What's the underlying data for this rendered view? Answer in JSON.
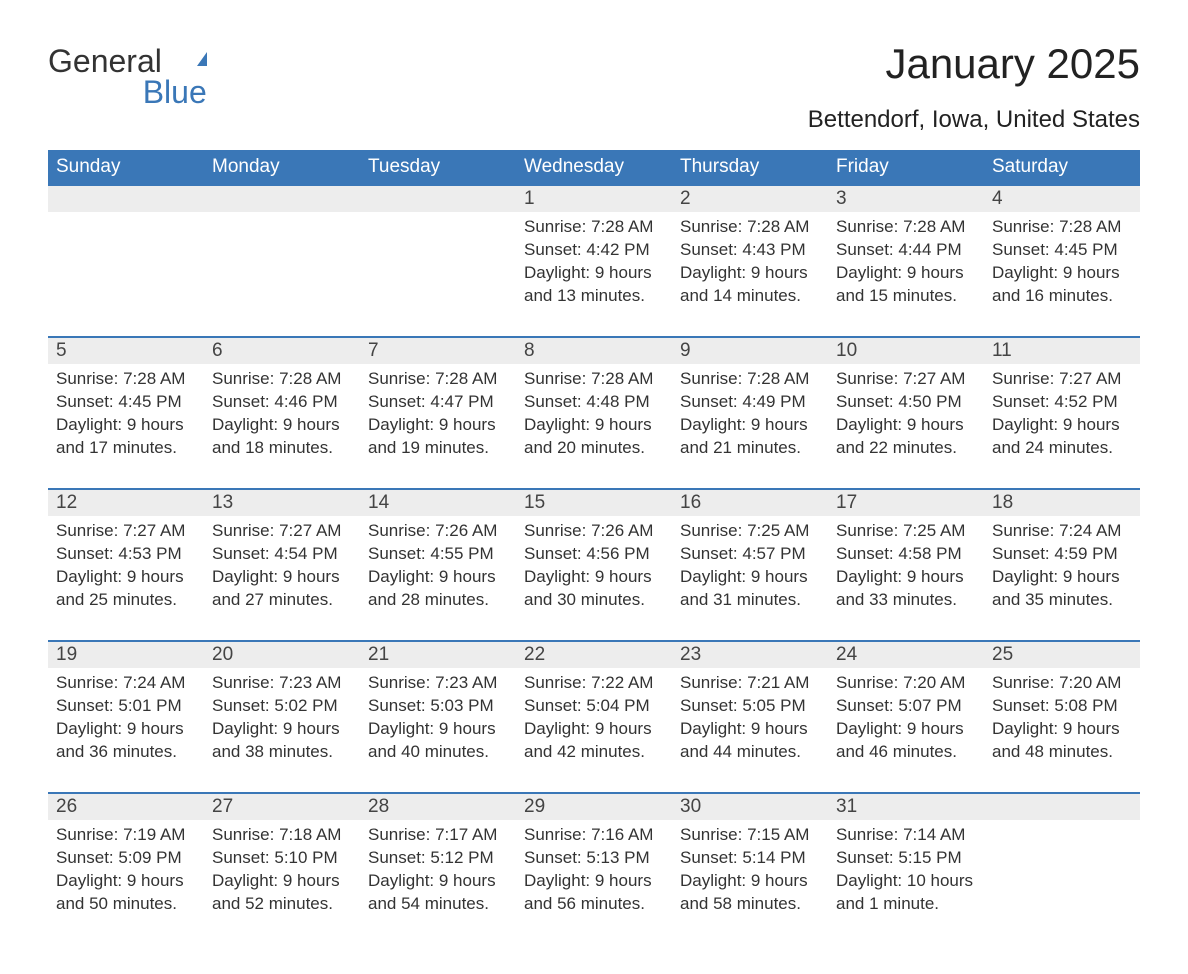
{
  "logo": {
    "text_general": "General",
    "text_blue": "Blue",
    "flag_color": "#3a77b7"
  },
  "title": "January 2025",
  "location": "Bettendorf, Iowa, United States",
  "colors": {
    "brand_blue": "#3a77b7",
    "header_text": "#ffffff",
    "daynum_bg": "#ededed",
    "body_text": "#333333",
    "page_bg": "#ffffff"
  },
  "day_headers": [
    "Sunday",
    "Monday",
    "Tuesday",
    "Wednesday",
    "Thursday",
    "Friday",
    "Saturday"
  ],
  "weeks": [
    [
      null,
      null,
      null,
      {
        "n": "1",
        "sunrise": "Sunrise: 7:28 AM",
        "sunset": "Sunset: 4:42 PM",
        "d1": "Daylight: 9 hours",
        "d2": "and 13 minutes."
      },
      {
        "n": "2",
        "sunrise": "Sunrise: 7:28 AM",
        "sunset": "Sunset: 4:43 PM",
        "d1": "Daylight: 9 hours",
        "d2": "and 14 minutes."
      },
      {
        "n": "3",
        "sunrise": "Sunrise: 7:28 AM",
        "sunset": "Sunset: 4:44 PM",
        "d1": "Daylight: 9 hours",
        "d2": "and 15 minutes."
      },
      {
        "n": "4",
        "sunrise": "Sunrise: 7:28 AM",
        "sunset": "Sunset: 4:45 PM",
        "d1": "Daylight: 9 hours",
        "d2": "and 16 minutes."
      }
    ],
    [
      {
        "n": "5",
        "sunrise": "Sunrise: 7:28 AM",
        "sunset": "Sunset: 4:45 PM",
        "d1": "Daylight: 9 hours",
        "d2": "and 17 minutes."
      },
      {
        "n": "6",
        "sunrise": "Sunrise: 7:28 AM",
        "sunset": "Sunset: 4:46 PM",
        "d1": "Daylight: 9 hours",
        "d2": "and 18 minutes."
      },
      {
        "n": "7",
        "sunrise": "Sunrise: 7:28 AM",
        "sunset": "Sunset: 4:47 PM",
        "d1": "Daylight: 9 hours",
        "d2": "and 19 minutes."
      },
      {
        "n": "8",
        "sunrise": "Sunrise: 7:28 AM",
        "sunset": "Sunset: 4:48 PM",
        "d1": "Daylight: 9 hours",
        "d2": "and 20 minutes."
      },
      {
        "n": "9",
        "sunrise": "Sunrise: 7:28 AM",
        "sunset": "Sunset: 4:49 PM",
        "d1": "Daylight: 9 hours",
        "d2": "and 21 minutes."
      },
      {
        "n": "10",
        "sunrise": "Sunrise: 7:27 AM",
        "sunset": "Sunset: 4:50 PM",
        "d1": "Daylight: 9 hours",
        "d2": "and 22 minutes."
      },
      {
        "n": "11",
        "sunrise": "Sunrise: 7:27 AM",
        "sunset": "Sunset: 4:52 PM",
        "d1": "Daylight: 9 hours",
        "d2": "and 24 minutes."
      }
    ],
    [
      {
        "n": "12",
        "sunrise": "Sunrise: 7:27 AM",
        "sunset": "Sunset: 4:53 PM",
        "d1": "Daylight: 9 hours",
        "d2": "and 25 minutes."
      },
      {
        "n": "13",
        "sunrise": "Sunrise: 7:27 AM",
        "sunset": "Sunset: 4:54 PM",
        "d1": "Daylight: 9 hours",
        "d2": "and 27 minutes."
      },
      {
        "n": "14",
        "sunrise": "Sunrise: 7:26 AM",
        "sunset": "Sunset: 4:55 PM",
        "d1": "Daylight: 9 hours",
        "d2": "and 28 minutes."
      },
      {
        "n": "15",
        "sunrise": "Sunrise: 7:26 AM",
        "sunset": "Sunset: 4:56 PM",
        "d1": "Daylight: 9 hours",
        "d2": "and 30 minutes."
      },
      {
        "n": "16",
        "sunrise": "Sunrise: 7:25 AM",
        "sunset": "Sunset: 4:57 PM",
        "d1": "Daylight: 9 hours",
        "d2": "and 31 minutes."
      },
      {
        "n": "17",
        "sunrise": "Sunrise: 7:25 AM",
        "sunset": "Sunset: 4:58 PM",
        "d1": "Daylight: 9 hours",
        "d2": "and 33 minutes."
      },
      {
        "n": "18",
        "sunrise": "Sunrise: 7:24 AM",
        "sunset": "Sunset: 4:59 PM",
        "d1": "Daylight: 9 hours",
        "d2": "and 35 minutes."
      }
    ],
    [
      {
        "n": "19",
        "sunrise": "Sunrise: 7:24 AM",
        "sunset": "Sunset: 5:01 PM",
        "d1": "Daylight: 9 hours",
        "d2": "and 36 minutes."
      },
      {
        "n": "20",
        "sunrise": "Sunrise: 7:23 AM",
        "sunset": "Sunset: 5:02 PM",
        "d1": "Daylight: 9 hours",
        "d2": "and 38 minutes."
      },
      {
        "n": "21",
        "sunrise": "Sunrise: 7:23 AM",
        "sunset": "Sunset: 5:03 PM",
        "d1": "Daylight: 9 hours",
        "d2": "and 40 minutes."
      },
      {
        "n": "22",
        "sunrise": "Sunrise: 7:22 AM",
        "sunset": "Sunset: 5:04 PM",
        "d1": "Daylight: 9 hours",
        "d2": "and 42 minutes."
      },
      {
        "n": "23",
        "sunrise": "Sunrise: 7:21 AM",
        "sunset": "Sunset: 5:05 PM",
        "d1": "Daylight: 9 hours",
        "d2": "and 44 minutes."
      },
      {
        "n": "24",
        "sunrise": "Sunrise: 7:20 AM",
        "sunset": "Sunset: 5:07 PM",
        "d1": "Daylight: 9 hours",
        "d2": "and 46 minutes."
      },
      {
        "n": "25",
        "sunrise": "Sunrise: 7:20 AM",
        "sunset": "Sunset: 5:08 PM",
        "d1": "Daylight: 9 hours",
        "d2": "and 48 minutes."
      }
    ],
    [
      {
        "n": "26",
        "sunrise": "Sunrise: 7:19 AM",
        "sunset": "Sunset: 5:09 PM",
        "d1": "Daylight: 9 hours",
        "d2": "and 50 minutes."
      },
      {
        "n": "27",
        "sunrise": "Sunrise: 7:18 AM",
        "sunset": "Sunset: 5:10 PM",
        "d1": "Daylight: 9 hours",
        "d2": "and 52 minutes."
      },
      {
        "n": "28",
        "sunrise": "Sunrise: 7:17 AM",
        "sunset": "Sunset: 5:12 PM",
        "d1": "Daylight: 9 hours",
        "d2": "and 54 minutes."
      },
      {
        "n": "29",
        "sunrise": "Sunrise: 7:16 AM",
        "sunset": "Sunset: 5:13 PM",
        "d1": "Daylight: 9 hours",
        "d2": "and 56 minutes."
      },
      {
        "n": "30",
        "sunrise": "Sunrise: 7:15 AM",
        "sunset": "Sunset: 5:14 PM",
        "d1": "Daylight: 9 hours",
        "d2": "and 58 minutes."
      },
      {
        "n": "31",
        "sunrise": "Sunrise: 7:14 AM",
        "sunset": "Sunset: 5:15 PM",
        "d1": "Daylight: 10 hours",
        "d2": "and 1 minute."
      },
      null
    ]
  ]
}
